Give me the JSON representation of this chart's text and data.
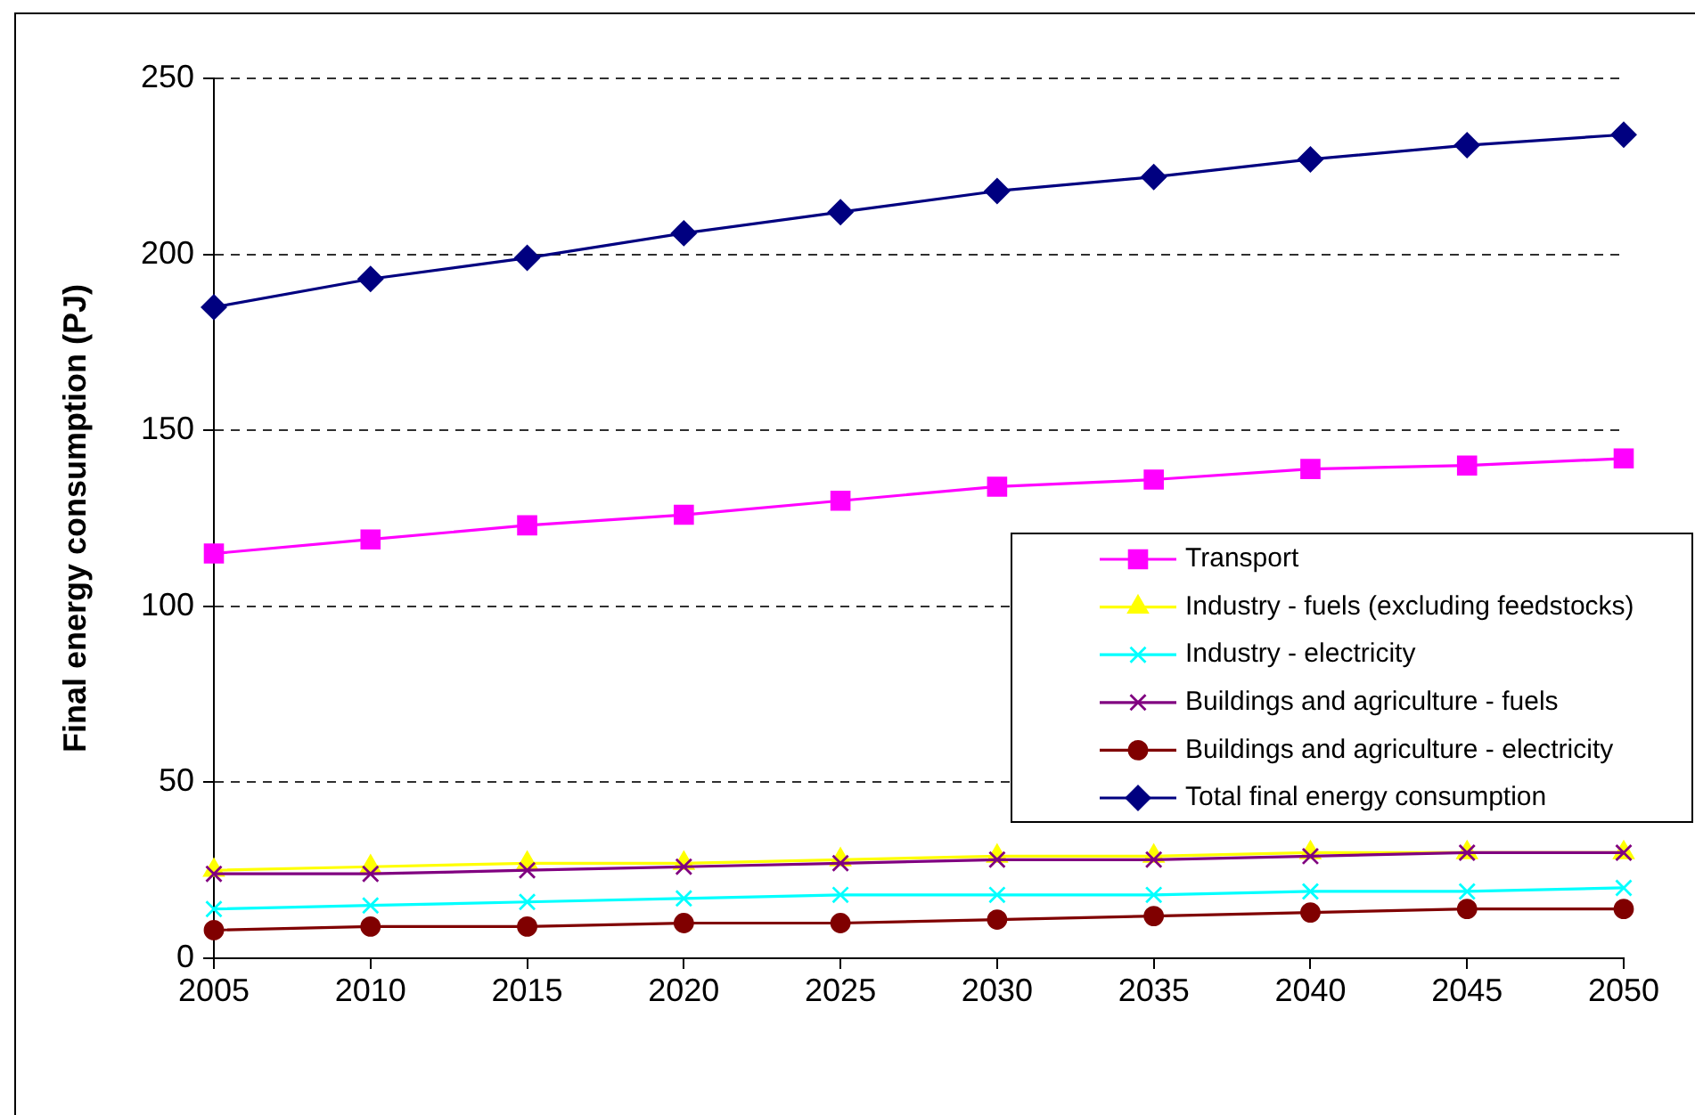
{
  "chart_data": {
    "type": "line",
    "ylabel": "Final energy consumption (PJ)",
    "categories": [
      "2005",
      "2010",
      "2015",
      "2020",
      "2025",
      "2030",
      "2035",
      "2040",
      "2045",
      "2050"
    ],
    "series": [
      {
        "name": "Transport",
        "color": "#ff00ff",
        "marker": "square",
        "values": [
          115,
          119,
          123,
          126,
          130,
          134,
          136,
          139,
          140,
          142
        ]
      },
      {
        "name": "Industry - fuels (excluding feedstocks)",
        "color": "#ffff00",
        "marker": "triangle",
        "values": [
          25,
          26,
          27,
          27,
          28,
          29,
          29,
          30,
          30,
          30
        ]
      },
      {
        "name": "Industry - electricity",
        "color": "#00ffff",
        "marker": "cross",
        "values": [
          14,
          15,
          16,
          17,
          18,
          18,
          18,
          19,
          19,
          20
        ]
      },
      {
        "name": "Buildings and agriculture - fuels",
        "color": "#800080",
        "marker": "cross",
        "values": [
          24,
          24,
          25,
          26,
          27,
          28,
          28,
          29,
          30,
          30
        ]
      },
      {
        "name": "Buildings and agriculture - electricity",
        "color": "#800000",
        "marker": "circle",
        "values": [
          8,
          9,
          9,
          10,
          10,
          11,
          12,
          13,
          14,
          14
        ]
      },
      {
        "name": "Total final energy consumption",
        "color": "#000080",
        "marker": "diamond",
        "values": [
          185,
          193,
          199,
          206,
          212,
          218,
          222,
          227,
          231,
          234
        ]
      }
    ],
    "ylim": [
      0,
      250
    ],
    "yticks": [
      0,
      50,
      100,
      150,
      200,
      250
    ],
    "grid": "y",
    "legend": "bottom right"
  }
}
